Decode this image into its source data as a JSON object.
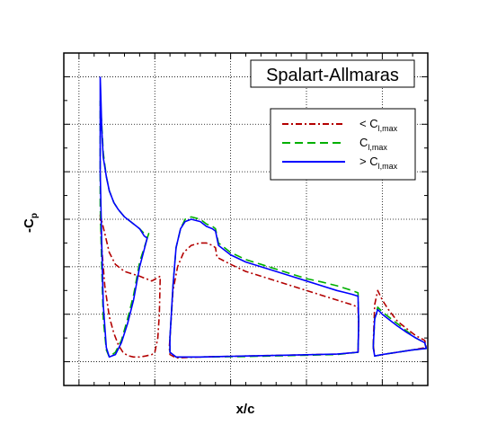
{
  "chart_data": {
    "type": "line",
    "title": "Spalart-Allmaras",
    "xlabel": "x/c",
    "ylabel_main": "-C",
    "ylabel_sub": "p",
    "xlim": [
      -0.05,
      1.15
    ],
    "ylim": [
      -0.5,
      6.5
    ],
    "grid": true,
    "legend_placement": "top-right",
    "series": [
      {
        "name_prefix": "< C",
        "name_sub": "l,max",
        "color": "#b30000",
        "dash": "dashdot",
        "elements": [
          [
            [
              0.07,
              3.1
            ],
            [
              0.075,
              2.4
            ],
            [
              0.085,
              1.6
            ],
            [
              0.1,
              0.95
            ],
            [
              0.115,
              0.6
            ],
            [
              0.13,
              0.35
            ],
            [
              0.145,
              0.2
            ],
            [
              0.16,
              0.13
            ],
            [
              0.18,
              0.1
            ],
            [
              0.2,
              0.1
            ],
            [
              0.22,
              0.12
            ],
            [
              0.24,
              0.15
            ],
            [
              0.25,
              0.2
            ],
            [
              0.26,
              0.5
            ],
            [
              0.265,
              1.0
            ],
            [
              0.268,
              1.8
            ],
            [
              0.24,
              1.7
            ],
            [
              0.2,
              1.8
            ],
            [
              0.15,
              1.9
            ],
            [
              0.12,
              2.05
            ],
            [
              0.1,
              2.3
            ],
            [
              0.085,
              2.7
            ],
            [
              0.07,
              3.1
            ]
          ],
          [
            [
              0.3,
              0.5
            ],
            [
              0.31,
              1.5
            ],
            [
              0.325,
              2.0
            ],
            [
              0.345,
              2.3
            ],
            [
              0.37,
              2.45
            ],
            [
              0.4,
              2.5
            ],
            [
              0.42,
              2.5
            ],
            [
              0.44,
              2.45
            ],
            [
              0.45,
              2.4
            ],
            [
              0.455,
              2.2
            ],
            [
              0.5,
              2.05
            ],
            [
              0.55,
              1.9
            ],
            [
              0.6,
              1.8
            ],
            [
              0.65,
              1.7
            ],
            [
              0.7,
              1.6
            ],
            [
              0.75,
              1.5
            ],
            [
              0.8,
              1.4
            ],
            [
              0.85,
              1.3
            ],
            [
              0.9,
              1.2
            ],
            [
              0.92,
              1.15
            ],
            [
              0.922,
              0.7
            ],
            [
              0.92,
              0.2
            ],
            [
              0.85,
              0.16
            ],
            [
              0.7,
              0.14
            ],
            [
              0.55,
              0.12
            ],
            [
              0.4,
              0.1
            ],
            [
              0.32,
              0.08
            ],
            [
              0.3,
              0.15
            ],
            [
              0.298,
              0.3
            ],
            [
              0.3,
              0.5
            ]
          ],
          [
            [
              0.97,
              0.35
            ],
            [
              0.975,
              1.2
            ],
            [
              0.985,
              1.5
            ],
            [
              1.0,
              1.3
            ],
            [
              1.02,
              1.1
            ],
            [
              1.05,
              0.85
            ],
            [
              1.08,
              0.7
            ],
            [
              1.11,
              0.55
            ],
            [
              1.14,
              0.45
            ],
            [
              1.145,
              0.3
            ],
            [
              1.1,
              0.25
            ],
            [
              1.05,
              0.2
            ],
            [
              1.0,
              0.15
            ],
            [
              0.975,
              0.12
            ],
            [
              0.97,
              0.35
            ]
          ]
        ]
      },
      {
        "name_prefix": "C",
        "name_sub": "l,max",
        "color": "#00b000",
        "dash": "dashed",
        "elements": [
          [
            [
              0.07,
              5.5
            ],
            [
              0.075,
              5.0
            ],
            [
              0.08,
              4.4
            ],
            [
              0.09,
              3.9
            ],
            [
              0.1,
              3.6
            ],
            [
              0.115,
              3.35
            ],
            [
              0.13,
              3.2
            ],
            [
              0.15,
              3.05
            ],
            [
              0.17,
              2.95
            ],
            [
              0.19,
              2.85
            ],
            [
              0.2,
              2.8
            ],
            [
              0.215,
              2.7
            ],
            [
              0.225,
              2.6
            ],
            [
              0.23,
              2.7
            ],
            [
              0.2,
              2.1
            ],
            [
              0.18,
              1.4
            ],
            [
              0.16,
              0.9
            ],
            [
              0.14,
              0.45
            ],
            [
              0.12,
              0.2
            ],
            [
              0.1,
              0.1
            ],
            [
              0.09,
              0.25
            ],
            [
              0.08,
              0.9
            ],
            [
              0.075,
              2.0
            ],
            [
              0.07,
              3.3
            ],
            [
              0.07,
              5.5
            ]
          ],
          [
            [
              0.3,
              0.5
            ],
            [
              0.31,
              1.6
            ],
            [
              0.32,
              2.4
            ],
            [
              0.335,
              2.8
            ],
            [
              0.35,
              3.0
            ],
            [
              0.37,
              3.05
            ],
            [
              0.4,
              3.0
            ],
            [
              0.42,
              2.9
            ],
            [
              0.44,
              2.85
            ],
            [
              0.45,
              2.8
            ],
            [
              0.46,
              2.5
            ],
            [
              0.5,
              2.3
            ],
            [
              0.55,
              2.15
            ],
            [
              0.6,
              2.05
            ],
            [
              0.65,
              1.95
            ],
            [
              0.7,
              1.85
            ],
            [
              0.75,
              1.75
            ],
            [
              0.8,
              1.68
            ],
            [
              0.85,
              1.6
            ],
            [
              0.9,
              1.5
            ],
            [
              0.92,
              1.45
            ],
            [
              0.922,
              0.9
            ],
            [
              0.92,
              0.2
            ],
            [
              0.85,
              0.15
            ],
            [
              0.7,
              0.13
            ],
            [
              0.55,
              0.11
            ],
            [
              0.4,
              0.1
            ],
            [
              0.32,
              0.1
            ],
            [
              0.3,
              0.2
            ],
            [
              0.3,
              0.5
            ]
          ],
          [
            [
              0.97,
              0.3
            ],
            [
              0.975,
              0.9
            ],
            [
              0.985,
              1.15
            ],
            [
              1.0,
              1.05
            ],
            [
              1.02,
              0.95
            ],
            [
              1.05,
              0.8
            ],
            [
              1.08,
              0.65
            ],
            [
              1.11,
              0.5
            ],
            [
              1.14,
              0.4
            ],
            [
              1.145,
              0.28
            ],
            [
              1.1,
              0.25
            ],
            [
              1.05,
              0.2
            ],
            [
              1.0,
              0.15
            ],
            [
              0.975,
              0.12
            ],
            [
              0.97,
              0.3
            ]
          ]
        ]
      },
      {
        "name_prefix": "> C",
        "name_sub": "l,max",
        "color": "#0000ff",
        "dash": "solid",
        "elements": [
          [
            [
              0.07,
              6.0
            ],
            [
              0.072,
              5.6
            ],
            [
              0.075,
              4.9
            ],
            [
              0.08,
              4.3
            ],
            [
              0.09,
              3.9
            ],
            [
              0.1,
              3.6
            ],
            [
              0.115,
              3.35
            ],
            [
              0.13,
              3.2
            ],
            [
              0.15,
              3.05
            ],
            [
              0.17,
              2.95
            ],
            [
              0.19,
              2.85
            ],
            [
              0.2,
              2.8
            ],
            [
              0.215,
              2.65
            ],
            [
              0.225,
              2.6
            ],
            [
              0.2,
              2.0
            ],
            [
              0.18,
              1.3
            ],
            [
              0.16,
              0.8
            ],
            [
              0.14,
              0.4
            ],
            [
              0.12,
              0.15
            ],
            [
              0.1,
              0.1
            ],
            [
              0.09,
              0.3
            ],
            [
              0.08,
              1.2
            ],
            [
              0.075,
              2.5
            ],
            [
              0.07,
              4.0
            ],
            [
              0.07,
              6.0
            ]
          ],
          [
            [
              0.3,
              0.5
            ],
            [
              0.31,
              1.6
            ],
            [
              0.32,
              2.4
            ],
            [
              0.335,
              2.8
            ],
            [
              0.35,
              2.95
            ],
            [
              0.37,
              3.0
            ],
            [
              0.4,
              2.95
            ],
            [
              0.42,
              2.85
            ],
            [
              0.44,
              2.8
            ],
            [
              0.45,
              2.75
            ],
            [
              0.46,
              2.45
            ],
            [
              0.5,
              2.25
            ],
            [
              0.55,
              2.1
            ],
            [
              0.6,
              2.0
            ],
            [
              0.65,
              1.9
            ],
            [
              0.7,
              1.8
            ],
            [
              0.75,
              1.7
            ],
            [
              0.8,
              1.6
            ],
            [
              0.85,
              1.5
            ],
            [
              0.9,
              1.42
            ],
            [
              0.92,
              1.38
            ],
            [
              0.922,
              0.85
            ],
            [
              0.92,
              0.2
            ],
            [
              0.85,
              0.16
            ],
            [
              0.7,
              0.14
            ],
            [
              0.55,
              0.12
            ],
            [
              0.4,
              0.1
            ],
            [
              0.32,
              0.1
            ],
            [
              0.3,
              0.2
            ],
            [
              0.3,
              0.5
            ]
          ],
          [
            [
              0.97,
              0.3
            ],
            [
              0.975,
              0.9
            ],
            [
              0.985,
              1.1
            ],
            [
              1.0,
              1.0
            ],
            [
              1.02,
              0.9
            ],
            [
              1.05,
              0.75
            ],
            [
              1.08,
              0.62
            ],
            [
              1.11,
              0.5
            ],
            [
              1.14,
              0.4
            ],
            [
              1.145,
              0.28
            ],
            [
              1.1,
              0.25
            ],
            [
              1.05,
              0.2
            ],
            [
              1.0,
              0.15
            ],
            [
              0.975,
              0.12
            ],
            [
              0.97,
              0.3
            ]
          ]
        ]
      }
    ]
  }
}
